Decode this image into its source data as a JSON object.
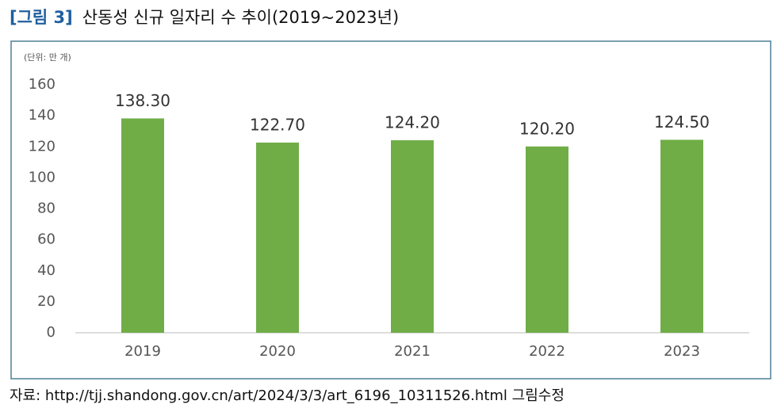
{
  "chart_data": {
    "type": "bar",
    "figure_label": "[그림 3]",
    "title": "산동성 신규 일자리 수 추이(2019~2023년)",
    "unit_label": "(단위: 만 개)",
    "source": "자료: http://tjj.shandong.gov.cn/art/2024/3/3/art_6196_10311526.html 그림수정",
    "categories": [
      "2019",
      "2020",
      "2021",
      "2022",
      "2023"
    ],
    "values": [
      138.3,
      122.7,
      124.2,
      120.2,
      124.5
    ],
    "value_labels": [
      "138.30",
      "122.70",
      "124.20",
      "120.20",
      "124.50"
    ],
    "color": "#70ad47",
    "ylim": [
      0,
      160
    ],
    "yticks": [
      0,
      20,
      40,
      60,
      80,
      100,
      120,
      140,
      160
    ],
    "grid": false
  }
}
